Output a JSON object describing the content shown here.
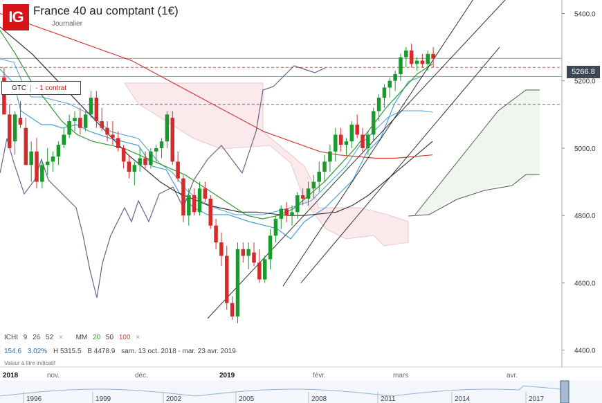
{
  "header": {
    "logo": "IG",
    "title": "France 40 au comptant (1€)",
    "subtitle": "Journalier"
  },
  "order": {
    "type": "GTC",
    "size": "- 1 contrat"
  },
  "last_price": "5266.8",
  "indicators": {
    "ichimoku_label": "ICHI",
    "ichimoku_params": [
      "9",
      "26",
      "52"
    ],
    "ma_label": "MM",
    "ma_params": [
      "20",
      "50",
      "100"
    ],
    "close_glyph": "×"
  },
  "stats": {
    "change": "154.6",
    "change_pct": "3.02%",
    "high": "H 5315.5",
    "low": "B 4478.9",
    "range": "sam. 13 oct. 2018 - mar. 23 avr. 2019"
  },
  "note": "Valeur à titre indicatif",
  "colors": {
    "up": "#1a9a2a",
    "down": "#d42a2a",
    "ma20": "#2e9a2e",
    "ma50": "#333333",
    "ma100": "#d43a3a",
    "kijun": "#4a9ed8",
    "lagging": "#6b5f8a",
    "cloud_bear": "#fbe9ec",
    "cloud_bull": "#eef6ee"
  },
  "chart_data": {
    "type": "candlestick",
    "y_axis": {
      "ticks": [
        4400,
        4600,
        4800,
        5000,
        5200,
        5400
      ],
      "tick_labels": [
        "4400.0",
        "4600.0",
        "4800.0",
        "5000.0",
        "5200.0",
        "5400.0"
      ],
      "range": [
        4350,
        5440
      ]
    },
    "x_axis": {
      "labels": [
        "2018",
        "nov.",
        "déc.",
        "2019",
        "févr.",
        "mars",
        "avr."
      ]
    },
    "navigator": {
      "labels": [
        "1996",
        "1999",
        "2002",
        "2005",
        "2008",
        "2011",
        "2014",
        "2017"
      ]
    },
    "horizontal_levels": [
      5266.8,
      5240,
      5213,
      5130
    ],
    "candles": [
      [
        5210,
        5240,
        5110,
        5100
      ],
      [
        5100,
        5130,
        5010,
        5000
      ],
      [
        5020,
        5110,
        4980,
        5100
      ],
      [
        5090,
        5140,
        5060,
        5070
      ],
      [
        5060,
        5090,
        4960,
        4950
      ],
      [
        4950,
        5020,
        4900,
        4990
      ],
      [
        4990,
        5030,
        4880,
        4900
      ],
      [
        4900,
        4960,
        4880,
        4950
      ],
      [
        4950,
        5000,
        4920,
        4960
      ],
      [
        4960,
        4990,
        4930,
        4975
      ],
      [
        4975,
        5020,
        4950,
        5010
      ],
      [
        5010,
        5060,
        5000,
        5040
      ],
      [
        5040,
        5100,
        5030,
        5080
      ],
      [
        5080,
        5110,
        5050,
        5090
      ],
      [
        5090,
        5120,
        5040,
        5060
      ],
      [
        5060,
        5110,
        5050,
        5100
      ],
      [
        5100,
        5170,
        5090,
        5150
      ],
      [
        5150,
        5170,
        5060,
        5080
      ],
      [
        5080,
        5120,
        5050,
        5060
      ],
      [
        5060,
        5080,
        5020,
        5040
      ],
      [
        5040,
        5080,
        5010,
        5030
      ],
      [
        5030,
        5050,
        4990,
        5000
      ],
      [
        5000,
        5010,
        4940,
        4960
      ],
      [
        4960,
        4980,
        4910,
        4930
      ],
      [
        4930,
        4960,
        4890,
        4950
      ],
      [
        4950,
        5000,
        4930,
        4970
      ],
      [
        4970,
        4990,
        4940,
        4950
      ],
      [
        4950,
        5000,
        4940,
        4990
      ],
      [
        4990,
        5010,
        4960,
        5000
      ],
      [
        5000,
        5030,
        4970,
        5020
      ],
      [
        5020,
        5110,
        5000,
        5100
      ],
      [
        5090,
        5110,
        4950,
        4960
      ],
      [
        4960,
        4990,
        4900,
        4910
      ],
      [
        4910,
        4920,
        4780,
        4800
      ],
      [
        4800,
        4880,
        4770,
        4860
      ],
      [
        4860,
        4880,
        4800,
        4810
      ],
      [
        4810,
        4900,
        4800,
        4880
      ],
      [
        4880,
        4900,
        4840,
        4850
      ],
      [
        4850,
        4860,
        4760,
        4770
      ],
      [
        4770,
        4790,
        4700,
        4720
      ],
      [
        4720,
        4750,
        4650,
        4680
      ],
      [
        4680,
        4710,
        4520,
        4540
      ],
      [
        4540,
        4560,
        4490,
        4500
      ],
      [
        4500,
        4720,
        4480,
        4700
      ],
      [
        4700,
        4720,
        4660,
        4680
      ],
      [
        4680,
        4720,
        4640,
        4700
      ],
      [
        4690,
        4720,
        4650,
        4660
      ],
      [
        4660,
        4700,
        4600,
        4610
      ],
      [
        4610,
        4680,
        4600,
        4670
      ],
      [
        4670,
        4760,
        4640,
        4740
      ],
      [
        4740,
        4800,
        4720,
        4790
      ],
      [
        4790,
        4830,
        4760,
        4820
      ],
      [
        4820,
        4840,
        4780,
        4800
      ],
      [
        4800,
        4830,
        4770,
        4810
      ],
      [
        4810,
        4870,
        4790,
        4860
      ],
      [
        4860,
        4880,
        4830,
        4850
      ],
      [
        4850,
        4900,
        4830,
        4880
      ],
      [
        4880,
        4920,
        4850,
        4900
      ],
      [
        4900,
        4960,
        4870,
        4930
      ],
      [
        4930,
        4980,
        4900,
        4960
      ],
      [
        4960,
        5010,
        4930,
        4990
      ],
      [
        4990,
        5060,
        4960,
        5040
      ],
      [
        5040,
        5060,
        4990,
        5010
      ],
      [
        5010,
        5030,
        4980,
        5020
      ],
      [
        5020,
        5080,
        5000,
        5070
      ],
      [
        5070,
        5100,
        5030,
        5040
      ],
      [
        5040,
        5060,
        4990,
        5000
      ],
      [
        5000,
        5050,
        4980,
        5040
      ],
      [
        5040,
        5120,
        5020,
        5110
      ],
      [
        5110,
        5160,
        5080,
        5150
      ],
      [
        5150,
        5190,
        5120,
        5180
      ],
      [
        5180,
        5210,
        5150,
        5200
      ],
      [
        5200,
        5230,
        5170,
        5220
      ],
      [
        5220,
        5280,
        5200,
        5270
      ],
      [
        5270,
        5300,
        5240,
        5290
      ],
      [
        5290,
        5310,
        5240,
        5250
      ],
      [
        5250,
        5270,
        5230,
        5260
      ],
      [
        5260,
        5280,
        5240,
        5250
      ],
      [
        5250,
        5290,
        5230,
        5280
      ],
      [
        5280,
        5300,
        5240,
        5266.8
      ]
    ],
    "moving_averages": [
      {
        "name": "20",
        "values": [
          5350,
          5280,
          5200,
          5140,
          5080,
          5040,
          5020,
          5010,
          5000,
          4980,
          4960,
          4940,
          4920,
          4890,
          4860,
          4830,
          4800,
          4790,
          4800,
          4820,
          4860,
          4900,
          4950,
          5000,
          5060,
          5120,
          5170,
          5220,
          5250
        ]
      },
      {
        "name": "50",
        "values": [
          5360,
          5320,
          5280,
          5230,
          5180,
          5130,
          5080,
          5030,
          4980,
          4940,
          4900,
          4870,
          4850,
          4830,
          4820,
          4810,
          4810,
          4805,
          4800,
          4800,
          4805,
          4810,
          4830,
          4860,
          4900,
          4940,
          4980,
          5020
        ]
      },
      {
        "name": "100",
        "values": [
          5400,
          5380,
          5360,
          5340,
          5320,
          5300,
          5280,
          5260,
          5230,
          5200,
          5170,
          5140,
          5110,
          5080,
          5050,
          5030,
          5010,
          4990,
          4980,
          4975,
          4970,
          4970,
          4975,
          4980
        ]
      }
    ],
    "trendlines": [
      {
        "from": [
          0.47,
          4590
        ],
        "to": [
          0.83,
          5560
        ]
      },
      {
        "from": [
          0.5,
          4600
        ],
        "to": [
          0.83,
          5300
        ]
      }
    ]
  }
}
